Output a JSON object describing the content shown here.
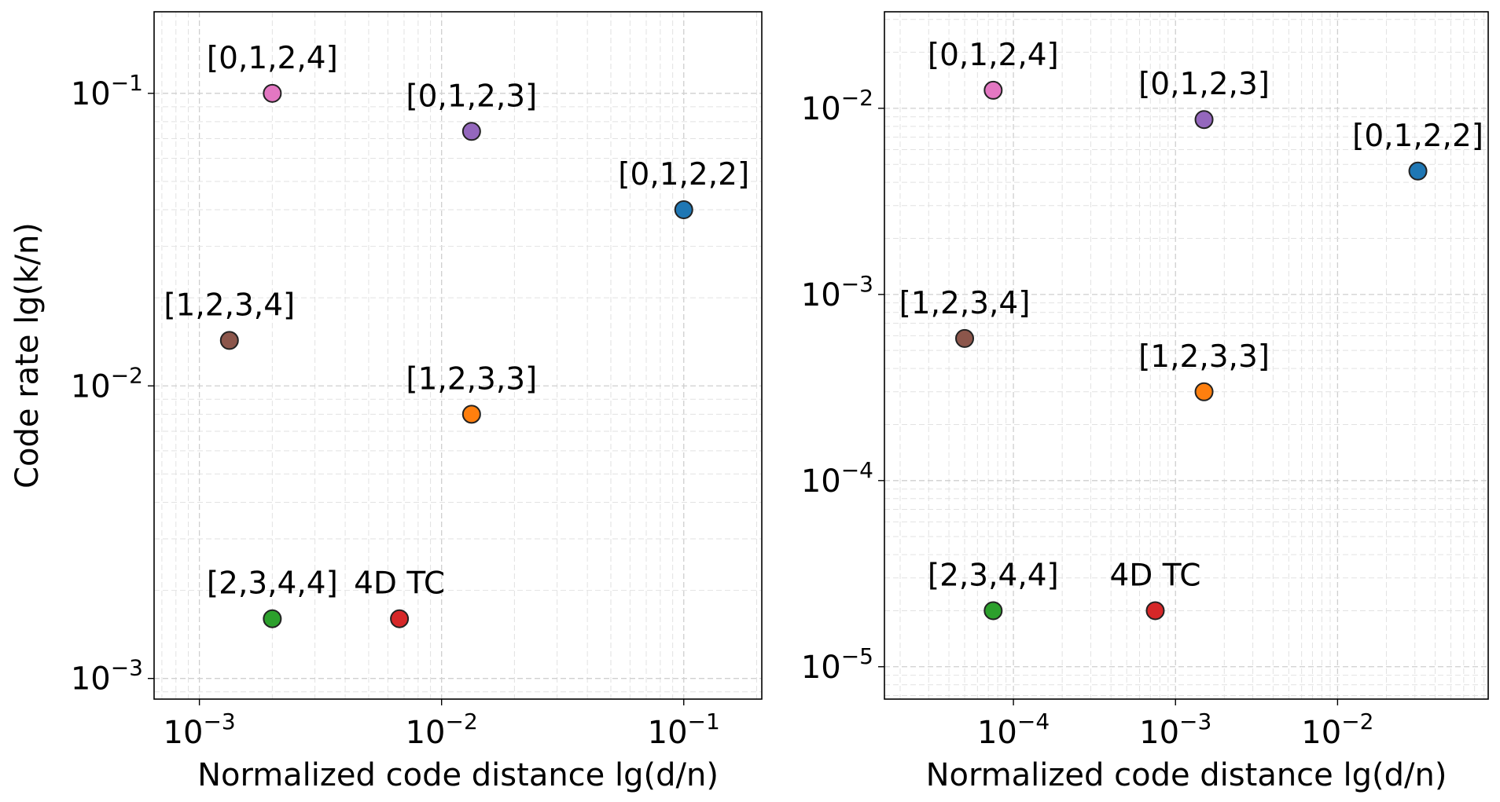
{
  "chart_data": [
    {
      "type": "scatter",
      "xscale": "log",
      "yscale": "log",
      "xlabel": "Normalized code distance lg(d/n)",
      "ylabel": "Code rate lg(k/n)",
      "xlim": [
        0.00065,
        0.21
      ],
      "ylim": [
        0.00085,
        0.19
      ],
      "xticks": [
        0.001,
        0.01,
        0.1
      ],
      "xtick_labels": [
        {
          "base": "10",
          "exp": "−3"
        },
        {
          "base": "10",
          "exp": "−2"
        },
        {
          "base": "10",
          "exp": "−1"
        }
      ],
      "yticks": [
        0.001,
        0.01,
        0.1
      ],
      "ytick_labels": [
        {
          "base": "10",
          "exp": "−3"
        },
        {
          "base": "10",
          "exp": "−2"
        },
        {
          "base": "10",
          "exp": "−1"
        }
      ],
      "grid": true,
      "points": [
        {
          "label": "[0,1,2,4]",
          "x": 0.002,
          "y": 0.1,
          "color": "#e377c2"
        },
        {
          "label": "[0,1,2,3]",
          "x": 0.0133,
          "y": 0.0741,
          "color": "#9467bd"
        },
        {
          "label": "[0,1,2,2]",
          "x": 0.1,
          "y": 0.04,
          "color": "#1f77b4"
        },
        {
          "label": "[1,2,3,4]",
          "x": 0.00133,
          "y": 0.0143,
          "color": "#8c564b"
        },
        {
          "label": "[1,2,3,3]",
          "x": 0.0133,
          "y": 0.008,
          "color": "#ff7f0e"
        },
        {
          "label": "[2,3,4,4]",
          "x": 0.002,
          "y": 0.0016,
          "color": "#2ca02c"
        },
        {
          "label": "4D TC",
          "x": 0.0067,
          "y": 0.0016,
          "color": "#d62728"
        }
      ]
    },
    {
      "type": "scatter",
      "xscale": "log",
      "yscale": "log",
      "xlabel": "Normalized code distance lg(d/n)",
      "ylabel": "",
      "xlim": [
        1.6e-05,
        0.085
      ],
      "ylim": [
        6.7e-06,
        0.033
      ],
      "xticks": [
        0.0001,
        0.001,
        0.01
      ],
      "xtick_labels": [
        {
          "base": "10",
          "exp": "−4"
        },
        {
          "base": "10",
          "exp": "−3"
        },
        {
          "base": "10",
          "exp": "−2"
        }
      ],
      "yticks": [
        1e-05,
        0.0001,
        0.001,
        0.01
      ],
      "ytick_labels": [
        {
          "base": "10",
          "exp": "−5"
        },
        {
          "base": "10",
          "exp": "−4"
        },
        {
          "base": "10",
          "exp": "−3"
        },
        {
          "base": "10",
          "exp": "−2"
        }
      ],
      "grid": true,
      "points": [
        {
          "label": "[0,1,2,4]",
          "x": 7.5e-05,
          "y": 0.0125,
          "color": "#e377c2"
        },
        {
          "label": "[0,1,2,3]",
          "x": 0.0015,
          "y": 0.0087,
          "color": "#9467bd"
        },
        {
          "label": "[0,1,2,2]",
          "x": 0.0313,
          "y": 0.0046,
          "color": "#1f77b4"
        },
        {
          "label": "[1,2,3,4]",
          "x": 5e-05,
          "y": 0.00058,
          "color": "#8c564b"
        },
        {
          "label": "[1,2,3,3]",
          "x": 0.0015,
          "y": 0.0003,
          "color": "#ff7f0e"
        },
        {
          "label": "[2,3,4,4]",
          "x": 7.5e-05,
          "y": 2e-05,
          "color": "#2ca02c"
        },
        {
          "label": "4D TC",
          "x": 0.00075,
          "y": 2e-05,
          "color": "#d62728"
        }
      ]
    }
  ]
}
